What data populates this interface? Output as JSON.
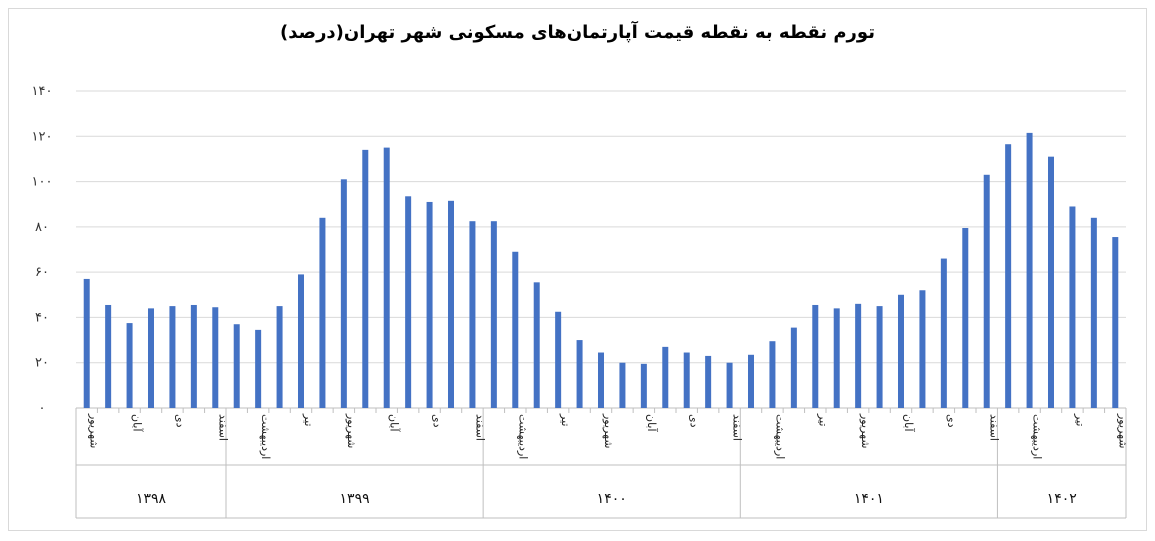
{
  "chart_data": {
    "type": "bar",
    "title": "تورم نقطه به نقطه قیمت آپارتمان‌های مسکونی شهر تهران(درصد)",
    "xlabel": "",
    "ylabel": "",
    "ylim": [
      0,
      140
    ],
    "yticks": [
      0,
      20,
      40,
      60,
      80,
      100,
      120,
      140
    ],
    "ytick_labels": [
      "۰",
      "۲۰",
      "۴۰",
      "۶۰",
      "۸۰",
      "۱۰۰",
      "۱۲۰",
      "۱۴۰"
    ],
    "grid": true,
    "legend": "none",
    "bar_color": "#4472C4",
    "values": [
      57,
      45.5,
      37.5,
      44,
      45,
      45.5,
      44.5,
      37,
      34.5,
      45,
      59,
      84,
      101,
      114,
      115,
      93.5,
      91,
      91.5,
      82.5,
      82.5,
      69,
      55.5,
      42.5,
      30,
      24.5,
      20,
      19.5,
      27,
      24.5,
      23,
      20,
      23.5,
      29.5,
      35.5,
      45.5,
      44,
      46,
      45,
      50,
      52,
      66,
      79.5,
      103,
      116.5,
      121.5,
      111,
      89,
      84,
      75.5
    ],
    "category_labels": [
      {
        "index": 0,
        "text": "شهریور"
      },
      {
        "index": 2,
        "text": "آبان"
      },
      {
        "index": 4,
        "text": "دی"
      },
      {
        "index": 6,
        "text": "اسفند"
      },
      {
        "index": 8,
        "text": "اردیبهشت"
      },
      {
        "index": 10,
        "text": "تیر"
      },
      {
        "index": 12,
        "text": "شهریور"
      },
      {
        "index": 14,
        "text": "آبان"
      },
      {
        "index": 16,
        "text": "دی"
      },
      {
        "index": 18,
        "text": "اسفند"
      },
      {
        "index": 20,
        "text": "اردیبهشت"
      },
      {
        "index": 22,
        "text": "تیر"
      },
      {
        "index": 24,
        "text": "شهریور"
      },
      {
        "index": 26,
        "text": "آبان"
      },
      {
        "index": 28,
        "text": "دی"
      },
      {
        "index": 30,
        "text": "اسفند"
      },
      {
        "index": 32,
        "text": "اردیبهشت"
      },
      {
        "index": 34,
        "text": "تیر"
      },
      {
        "index": 36,
        "text": "شهریور"
      },
      {
        "index": 38,
        "text": "آبان"
      },
      {
        "index": 40,
        "text": "دی"
      },
      {
        "index": 42,
        "text": "اسفند"
      },
      {
        "index": 44,
        "text": "اردیبهشت"
      },
      {
        "index": 46,
        "text": "تیر"
      },
      {
        "index": 48,
        "text": "شهریور"
      }
    ],
    "year_groups": [
      {
        "label": "۱۳۹۸",
        "start": 0,
        "count": 7
      },
      {
        "label": "۱۳۹۹",
        "start": 7,
        "count": 12
      },
      {
        "label": "۱۴۰۰",
        "start": 19,
        "count": 12
      },
      {
        "label": "۱۴۰۱",
        "start": 31,
        "count": 12
      },
      {
        "label": "۱۴۰۲",
        "start": 43,
        "count": 6
      }
    ]
  }
}
